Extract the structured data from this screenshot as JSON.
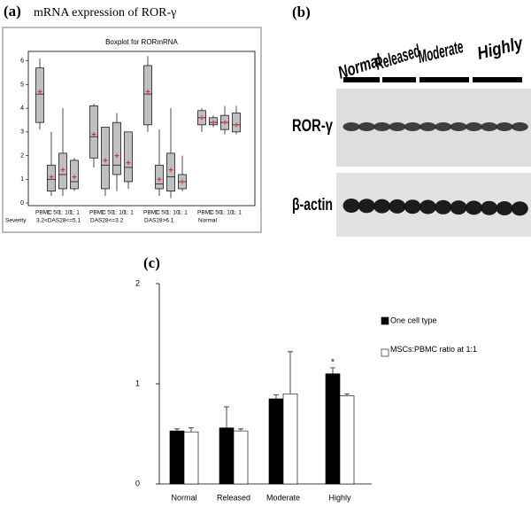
{
  "panel_labels": [
    "(a)",
    "(b)",
    "(c)"
  ],
  "panel_a_title": "mRNA expression of ROR-γ",
  "blot": {
    "columns": [
      "Normal",
      "Released",
      "Moderate",
      "Highly"
    ],
    "rows": [
      "ROR-γ",
      "β-actin"
    ]
  },
  "chart_data": [
    {
      "type": "boxplot",
      "title": "Boxplot for RORmRNA",
      "ylim": [
        0,
        6.4
      ],
      "yticks": [
        0,
        1,
        2,
        3,
        4,
        5,
        6
      ],
      "box_labels": [
        "PBMC",
        "1: 50",
        "1: 10",
        "1: 1"
      ],
      "group_axis_label": "Severity",
      "box_color": "#c0c0c0",
      "mean_color": "#e02020",
      "groups": [
        {
          "name": "3.2<DAS28<=5.1",
          "boxes": [
            {
              "min": 3.1,
              "q1": 3.4,
              "median": 4.6,
              "q3": 5.7,
              "max": 6.1,
              "mean": 4.7
            },
            {
              "min": 0.3,
              "q1": 0.5,
              "median": 1.0,
              "q3": 1.6,
              "max": 3.0,
              "mean": 1.1
            },
            {
              "min": 0.3,
              "q1": 0.6,
              "median": 1.2,
              "q3": 2.1,
              "max": 4.0,
              "mean": 1.4
            },
            {
              "min": 0.5,
              "q1": 0.6,
              "median": 0.9,
              "q3": 1.8,
              "max": 1.9,
              "mean": 1.1
            }
          ]
        },
        {
          "name": "DAS28<=3.2",
          "boxes": [
            {
              "min": 1.5,
              "q1": 1.9,
              "median": 2.8,
              "q3": 4.1,
              "max": 4.2,
              "mean": 2.9
            },
            {
              "min": 0.3,
              "q1": 0.6,
              "median": 1.6,
              "q3": 3.2,
              "max": 3.2,
              "mean": 1.8
            },
            {
              "min": 0.5,
              "q1": 1.2,
              "median": 1.6,
              "q3": 3.4,
              "max": 3.8,
              "mean": 2.0
            },
            {
              "min": 0.6,
              "q1": 0.9,
              "median": 1.5,
              "q3": 3.0,
              "max": 3.0,
              "mean": 1.7
            }
          ]
        },
        {
          "name": "DAS28>6.1",
          "boxes": [
            {
              "min": 3.0,
              "q1": 3.3,
              "median": 4.6,
              "q3": 5.8,
              "max": 6.2,
              "mean": 4.7
            },
            {
              "min": 0.3,
              "q1": 0.6,
              "median": 0.8,
              "q3": 1.6,
              "max": 3.1,
              "mean": 1.0
            },
            {
              "min": 0.2,
              "q1": 0.5,
              "median": 1.1,
              "q3": 2.1,
              "max": 4.0,
              "mean": 1.4
            },
            {
              "min": 0.5,
              "q1": 0.6,
              "median": 0.9,
              "q3": 1.2,
              "max": 2.0,
              "mean": 0.9
            }
          ]
        },
        {
          "name": "Normal",
          "boxes": [
            {
              "min": 3.0,
              "q1": 3.3,
              "median": 3.6,
              "q3": 3.9,
              "max": 4.0,
              "mean": 3.6
            },
            {
              "min": 3.2,
              "q1": 3.3,
              "median": 3.4,
              "q3": 3.6,
              "max": 3.7,
              "mean": 3.4
            },
            {
              "min": 2.9,
              "q1": 3.1,
              "median": 3.4,
              "q3": 3.7,
              "max": 4.1,
              "mean": 3.4
            },
            {
              "min": 2.9,
              "q1": 3.0,
              "median": 3.3,
              "q3": 3.8,
              "max": 4.1,
              "mean": 3.3
            }
          ]
        }
      ]
    },
    {
      "type": "bar",
      "categories": [
        "Normal",
        "Released",
        "Moderate",
        "Highly"
      ],
      "ylim": [
        0,
        2
      ],
      "yticks": [
        0,
        1,
        2
      ],
      "series": [
        {
          "name": "One cell type",
          "color": "#000000",
          "values": [
            0.53,
            0.56,
            0.85,
            1.1
          ],
          "errors": [
            0.02,
            0.21,
            0.04,
            0.06
          ]
        },
        {
          "name": "MSCs:PBMC ratio at 1:1",
          "color": "#ffffff",
          "values": [
            0.52,
            0.53,
            0.9,
            0.88
          ],
          "errors": [
            0.04,
            0.02,
            0.42,
            0.02
          ]
        }
      ],
      "annotations": [
        {
          "text": "*",
          "category": 3,
          "series": 0
        }
      ]
    }
  ]
}
